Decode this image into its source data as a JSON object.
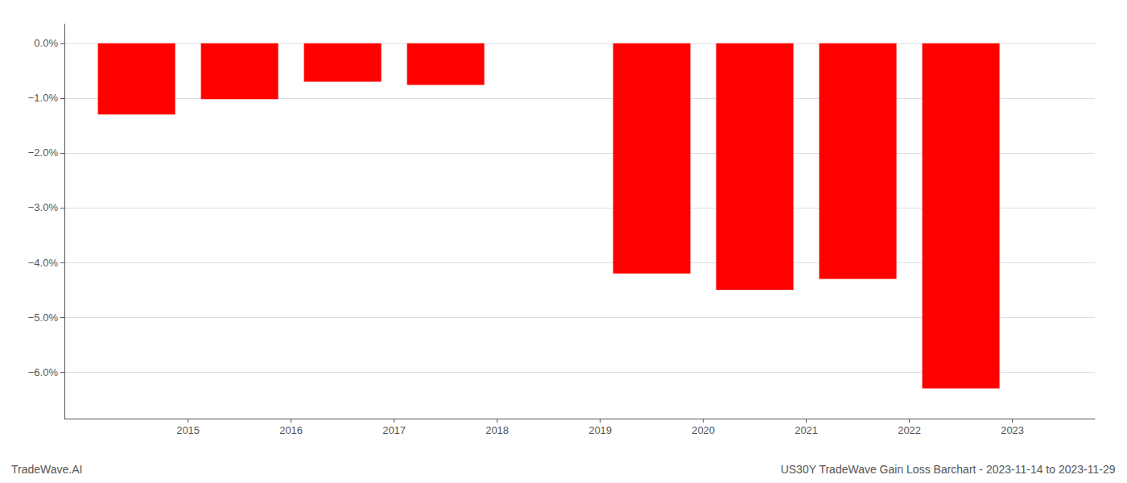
{
  "chart_data": {
    "type": "bar",
    "x": [
      2014.5,
      2015.5,
      2016.5,
      2017.5,
      2019.5,
      2020.5,
      2021.5,
      2022.5
    ],
    "values": [
      -1.3,
      -1.02,
      -0.7,
      -0.76,
      -4.2,
      -4.5,
      -4.3,
      -6.3
    ],
    "color": "#ff0000",
    "xlim": [
      2013.8,
      2023.8
    ],
    "xticks": [
      2015,
      2016,
      2017,
      2018,
      2019,
      2020,
      2021,
      2022,
      2023
    ],
    "ylim": [
      -6.85,
      0.35
    ],
    "yticks": [
      {
        "value": 0.0,
        "label": "0.0%"
      },
      {
        "value": -1.0,
        "label": "−1.0%"
      },
      {
        "value": -2.0,
        "label": "−2.0%"
      },
      {
        "value": -3.0,
        "label": "−3.0%"
      },
      {
        "value": -4.0,
        "label": "−4.0%"
      },
      {
        "value": -5.0,
        "label": "−5.0%"
      },
      {
        "value": -6.0,
        "label": "−6.0%"
      }
    ],
    "grid": true,
    "annotations": [
      "TradeWave.AI",
      "US30Y TradeWave Gain Loss Barchart - 2023-11-14 to 2023-11-29"
    ]
  }
}
